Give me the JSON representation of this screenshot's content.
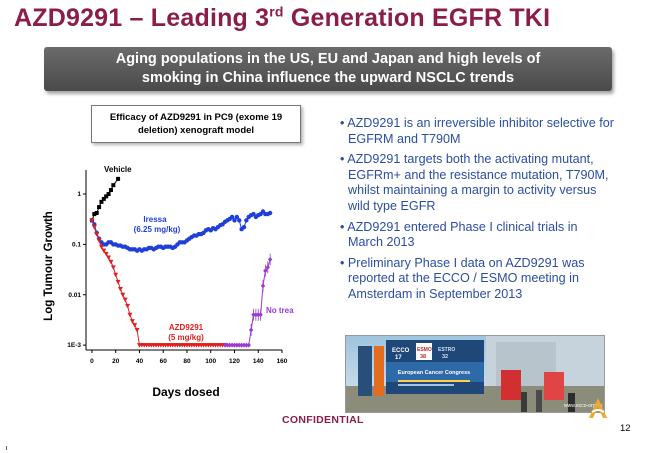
{
  "slide": {
    "title_main": "AZD9291 – Leading 3",
    "title_sup": "rd",
    "title_tail": " Generation EGFR TKI",
    "banner_line1": "Aging populations in the US, EU and Japan and high levels of",
    "banner_line2": "smoking in China influence the upward NSCLC trends",
    "chart_box_line1": "Efficacy of AZD9291 in PC9 (exome 19",
    "chart_box_line2": "deletion) xenograft model",
    "bullets": [
      "• AZD9291 is an irreversible inhibitor selective for EGFRM and T790M",
      "• AZD9291 targets both the activating mutant, EGFRm+  and the resistance mutation, T790M, whilst maintaining a margin to activity versus wild type EGFR",
      "• AZD9291 entered Phase I clinical trials in March 2013",
      "• Preliminary Phase I data on AZD9291 was reported at the ECCO / ESMO meeting in Amsterdam in September 2013"
    ],
    "photo": {
      "ecco": "ECCO",
      "ecco_num": "17",
      "esmo": "ESMO",
      "esmo_num": "38",
      "estro": "ESTRO",
      "estro_num": "32",
      "congress": "European Cancer Congress",
      "url": "www.ecco-org.eu"
    },
    "confidential": "CONFIDENTIAL",
    "page_number": "12"
  },
  "colors": {
    "title": "#8a1d4a",
    "bullets": "#2b4ea0",
    "vehicle": "#000000",
    "iressa": "#1f3fd6",
    "azd": "#e02020",
    "no_treatment": "#9a3ad0"
  },
  "chart_data": {
    "type": "line",
    "ylabel": "Log Tumour Growth",
    "xlabel": "Days dosed",
    "xlim": [
      -5,
      160
    ],
    "xticks": [
      "0",
      "20",
      "40",
      "60",
      "80",
      "100",
      "120",
      "140",
      "160"
    ],
    "yscale": "log",
    "ylim": [
      0.0008,
      3
    ],
    "yticks": [
      "1E-3",
      "0.01",
      "0.1",
      "1"
    ],
    "labels": {
      "vehicle": "Vehicle",
      "iressa_1": "Iressa",
      "iressa_2": "(6.25 mg/kg)",
      "azd_1": "AZD9291",
      "azd_2": "(5 mg/kg)",
      "no_treatment": "No treatment"
    },
    "series": [
      {
        "name": "Vehicle",
        "x": [
          0,
          2,
          4,
          6,
          8,
          10,
          12,
          14,
          16,
          18,
          22
        ],
        "y": [
          0.3,
          0.4,
          0.42,
          0.55,
          0.7,
          0.8,
          0.9,
          1.0,
          1.2,
          1.5,
          2.0
        ]
      },
      {
        "name": "Iressa",
        "x": [
          0,
          2,
          4,
          6,
          8,
          10,
          12,
          14,
          16,
          18,
          20,
          22,
          24,
          26,
          28,
          30,
          32,
          34,
          36,
          38,
          40,
          42,
          44,
          46,
          48,
          50,
          52,
          54,
          56,
          58,
          60,
          62,
          64,
          66,
          68,
          70,
          72,
          74,
          76,
          78,
          80,
          82,
          84,
          86,
          88,
          90,
          92,
          94,
          96,
          98,
          100,
          102,
          104,
          106,
          108,
          110,
          112,
          114,
          116,
          118,
          120,
          122,
          124,
          126,
          128,
          130,
          132,
          134,
          136,
          138,
          140,
          142,
          144,
          146,
          148,
          150
        ],
        "y": [
          0.3,
          0.25,
          0.17,
          0.13,
          0.11,
          0.1,
          0.1,
          0.11,
          0.11,
          0.1,
          0.1,
          0.095,
          0.095,
          0.09,
          0.09,
          0.085,
          0.08,
          0.08,
          0.08,
          0.075,
          0.08,
          0.075,
          0.08,
          0.08,
          0.085,
          0.085,
          0.08,
          0.085,
          0.09,
          0.09,
          0.085,
          0.09,
          0.09,
          0.09,
          0.085,
          0.09,
          0.1,
          0.11,
          0.11,
          0.11,
          0.12,
          0.13,
          0.14,
          0.15,
          0.15,
          0.16,
          0.16,
          0.17,
          0.19,
          0.2,
          0.19,
          0.21,
          0.2,
          0.22,
          0.24,
          0.25,
          0.28,
          0.3,
          0.32,
          0.35,
          0.3,
          0.35,
          0.3,
          0.2,
          0.22,
          0.3,
          0.35,
          0.38,
          0.4,
          0.35,
          0.38,
          0.4,
          0.45,
          0.4,
          0.4,
          0.42
        ]
      },
      {
        "name": "AZD9291",
        "x": [
          0,
          2,
          4,
          6,
          8,
          10,
          12,
          14,
          16,
          18,
          20,
          22,
          24,
          26,
          28,
          30,
          32,
          34,
          36,
          38,
          40,
          42,
          44,
          46,
          48,
          50,
          52,
          54,
          56,
          58,
          60,
          62,
          64,
          66,
          68,
          70,
          72,
          74,
          76,
          78,
          80,
          82,
          84,
          86,
          88,
          90,
          92,
          94,
          96,
          98,
          100,
          102,
          104,
          106,
          108,
          110,
          112
        ],
        "y": [
          0.3,
          0.22,
          0.16,
          0.12,
          0.09,
          0.075,
          0.065,
          0.055,
          0.045,
          0.035,
          0.025,
          0.018,
          0.013,
          0.01,
          0.008,
          0.006,
          0.004,
          0.003,
          0.0025,
          0.002,
          0.001,
          0.001,
          0.001,
          0.001,
          0.001,
          0.001,
          0.001,
          0.001,
          0.001,
          0.001,
          0.001,
          0.001,
          0.001,
          0.001,
          0.001,
          0.001,
          0.001,
          0.001,
          0.001,
          0.001,
          0.001,
          0.001,
          0.001,
          0.001,
          0.001,
          0.001,
          0.001,
          0.001,
          0.001,
          0.001,
          0.001,
          0.001,
          0.001,
          0.001,
          0.001,
          0.001,
          0.001
        ]
      },
      {
        "name": "No treatment",
        "x": [
          112,
          114,
          116,
          118,
          120,
          122,
          124,
          126,
          128,
          130,
          132,
          134,
          136,
          138,
          140,
          142,
          144,
          146,
          148,
          150
        ],
        "y": [
          0.001,
          0.001,
          0.001,
          0.001,
          0.001,
          0.001,
          0.001,
          0.001,
          0.001,
          0.001,
          0.001,
          0.002,
          0.004,
          0.004,
          0.004,
          0.004,
          0.015,
          0.03,
          0.035,
          0.05
        ]
      }
    ]
  }
}
